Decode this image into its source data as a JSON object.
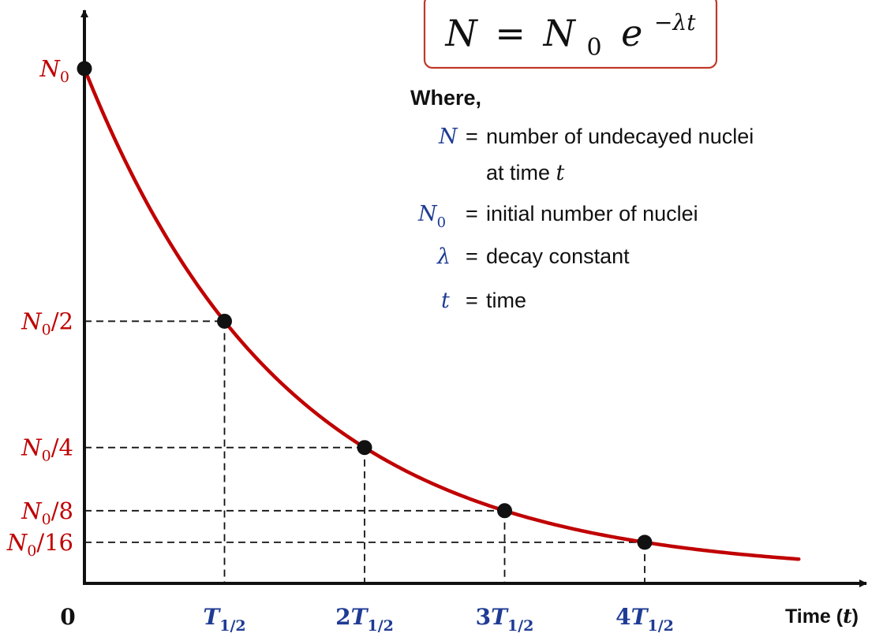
{
  "chart_data": {
    "type": "line",
    "title": "",
    "ylabel": "",
    "xlabel": {
      "main": "Time (",
      "var": "t",
      "close": ")"
    },
    "curve_color": "#c00000",
    "x_axis_ticks": [
      {
        "coef": "0",
        "sym": "",
        "sub": ""
      },
      {
        "coef": "",
        "sym": "T",
        "sub": "1/2"
      },
      {
        "coef": "2",
        "sym": "T",
        "sub": "1/2"
      },
      {
        "coef": "3",
        "sym": "T",
        "sub": "1/2"
      },
      {
        "coef": "4",
        "sym": "T",
        "sub": "1/2"
      }
    ],
    "y_axis_ticks": [
      {
        "sym": "N",
        "sub": "0",
        "rest": ""
      },
      {
        "sym": "N",
        "sub": "0",
        "rest": "/2"
      },
      {
        "sym": "N",
        "sub": "0",
        "rest": "/4"
      },
      {
        "sym": "N",
        "sub": "0",
        "rest": "/8"
      },
      {
        "sym": "N",
        "sub": "0",
        "rest": "/16"
      }
    ],
    "points": [
      {
        "t_half_lives": 0,
        "n_fraction": 1
      },
      {
        "t_half_lives": 1,
        "n_fraction": 0.5
      },
      {
        "t_half_lives": 2,
        "n_fraction": 0.25
      },
      {
        "t_half_lives": 3,
        "n_fraction": 0.125
      },
      {
        "t_half_lives": 4,
        "n_fraction": 0.0625
      }
    ],
    "curve_t_max": 5.1
  },
  "equation": {
    "lhs": "N",
    "equals": "=",
    "n": "N",
    "n_sub": "0",
    "e": "e",
    "exponent": "−λt"
  },
  "legend": {
    "heading": "Where,",
    "items": [
      {
        "symbol": "N",
        "symbol_sub": "",
        "equals": "=",
        "desc": "number of undecayed nuclei",
        "desc2": "at time ",
        "desc2_var": "t"
      },
      {
        "symbol": "N",
        "symbol_sub": "0",
        "equals": "=",
        "desc": "initial number of nuclei",
        "desc2": "",
        "desc2_var": ""
      },
      {
        "symbol": "λ",
        "symbol_sub": "",
        "equals": "=",
        "desc": "decay constant",
        "desc2": "",
        "desc2_var": ""
      },
      {
        "symbol": "t",
        "symbol_sub": "",
        "equals": "=",
        "desc": "time",
        "desc2": "",
        "desc2_var": ""
      }
    ]
  },
  "colors": {
    "curve": "#c00000",
    "axis_label_red": "#c00000",
    "axis_label_blue": "#1f3b94",
    "legend_symbol_blue": "#1f3b94",
    "equation_box_border": "#c0392b",
    "text": "#111111"
  }
}
